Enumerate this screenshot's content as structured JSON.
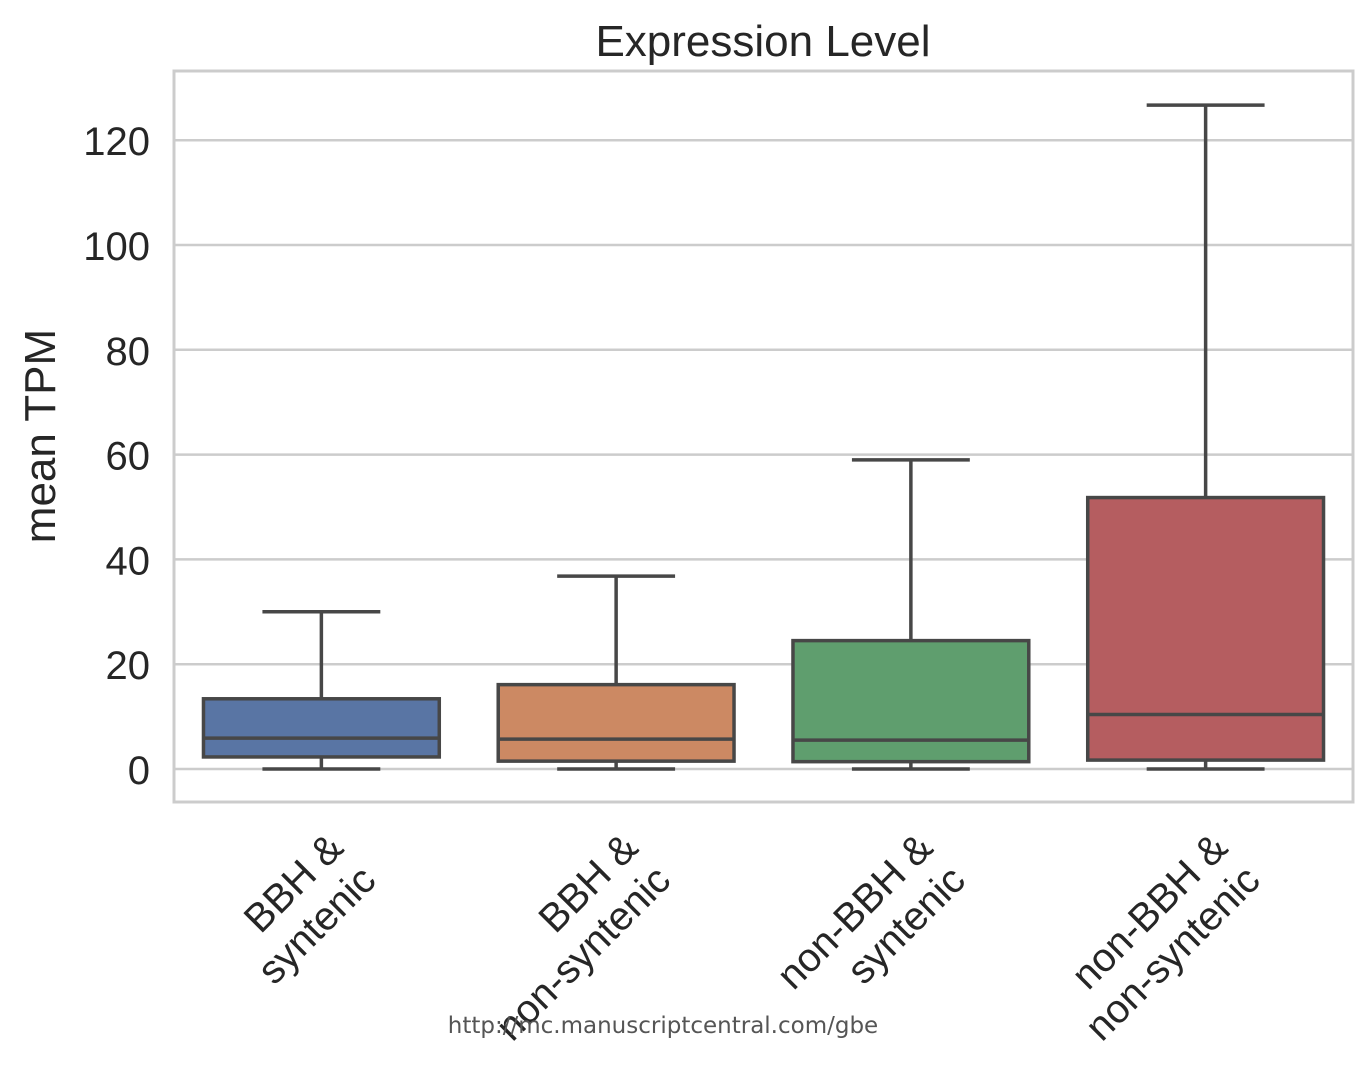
{
  "chart_data": {
    "type": "box",
    "title": "Expression Level",
    "xlabel": "",
    "ylabel": "mean TPM",
    "ylim": [
      -6.5,
      133
    ],
    "yticks": [
      0,
      20,
      40,
      60,
      80,
      100,
      120
    ],
    "grid": true,
    "categories": [
      {
        "label_lines": [
          "BBH &",
          "syntenic"
        ],
        "color": "#5975a4",
        "min": 0,
        "q1": 2.3,
        "median": 5.9,
        "q3": 13.4,
        "max": 30.0
      },
      {
        "label_lines": [
          "BBH &",
          "non-syntenic"
        ],
        "color": "#cc8963",
        "min": 0,
        "q1": 1.5,
        "median": 5.7,
        "q3": 16.1,
        "max": 36.8
      },
      {
        "label_lines": [
          "non-BBH &",
          "syntenic"
        ],
        "color": "#5f9e6e",
        "min": 0,
        "q1": 1.4,
        "median": 5.5,
        "q3": 24.5,
        "max": 59.0
      },
      {
        "label_lines": [
          "non-BBH &",
          "non-syntenic"
        ],
        "color": "#b55d60",
        "min": 0,
        "q1": 1.7,
        "median": 10.4,
        "q3": 51.8,
        "max": 126.7
      }
    ]
  },
  "watermark": "http://mc.manuscriptcentral.com/gbe",
  "colors": {
    "grid": "#cccccc",
    "frame": "#cccccc",
    "box_edge": "#474747",
    "text": "#262626"
  }
}
